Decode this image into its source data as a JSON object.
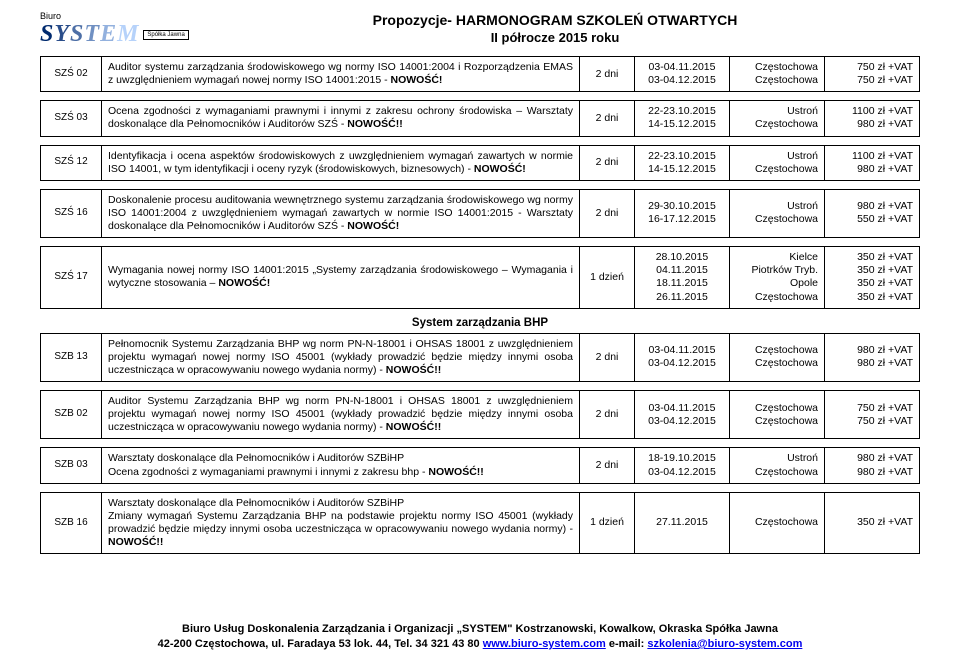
{
  "header": {
    "logo_biuro": "Biuro",
    "logo_spolka": "Spółka Jawna",
    "title_main": "Propozycje- HARMONOGRAM SZKOLEŃ OTWARTYCH",
    "title_sub": "II półrocze 2015 roku"
  },
  "rows1": [
    {
      "code": "SZŚ 02",
      "desc": "Auditor systemu zarządzania środowiskowego wg normy ISO 14001:2004 i Rozporządzenia EMAS z uwzględnieniem wymagań nowej normy ISO 14001:2015 - <b>NOWOŚĆ!</b>",
      "dur": "2 dni",
      "dates": "03-04.11.2015<br>03-04.12.2015",
      "loc": "Częstochowa<br>Częstochowa",
      "price": "750 zł +VAT<br>750 zł +VAT"
    }
  ],
  "rows2": [
    {
      "code": "SZŚ 03",
      "desc": "Ocena zgodności z wymaganiami prawnymi i innymi z zakresu ochrony środowiska – Warsztaty doskonalące dla Pełnomocników i Auditorów SZŚ - <b>NOWOŚĆ!!</b>",
      "dur": "2 dni",
      "dates": "22-23.10.2015<br>14-15.12.2015",
      "loc": "Ustroń<br>Częstochowa",
      "price": "1100 zł +VAT<br>980 zł +VAT"
    }
  ],
  "rows3": [
    {
      "code": "SZŚ 12",
      "desc": "Identyfikacja i ocena aspektów środowiskowych z uwzględnieniem wymagań zawartych w normie ISO 14001, w tym identyfikacji i oceny ryzyk (środowiskowych, biznesowych) - <b>NOWOŚĆ!</b>",
      "dur": "2 dni",
      "dates": "22-23.10.2015<br>14-15.12.2015",
      "loc": "Ustroń<br>Częstochowa",
      "price": "1100 zł +VAT<br>980 zł +VAT"
    }
  ],
  "rows4": [
    {
      "code": "SZŚ 16",
      "desc": "Doskonalenie procesu auditowania wewnętrznego systemu zarządzania środowiskowego wg normy ISO 14001:2004 z uwzględnieniem wymagań zawartych w normie ISO 14001:2015 - Warsztaty doskonalące dla Pełnomocników i Auditorów SZŚ - <b>NOWOŚĆ!</b>",
      "dur": "2 dni",
      "dates": "29-30.10.2015<br>16-17.12.2015",
      "loc": "Ustroń<br>Częstochowa",
      "price": "980 zł +VAT<br>550 zł +VAT"
    }
  ],
  "rows5": [
    {
      "code": "SZŚ 17",
      "desc": "Wymagania nowej normy ISO 14001:2015 „Systemy zarządzania środowiskowego – Wymagania i wytyczne stosowania – <b>NOWOŚĆ!</b>",
      "dur": "1 dzień",
      "dates": "28.10.2015<br>04.11.2015<br>18.11.2015<br>26.11.2015",
      "loc": "Kielce<br>Piotrków Tryb.<br>Opole<br>Częstochowa",
      "price": "350 zł +VAT<br>350 zł +VAT<br>350 zł +VAT<br>350 zł +VAT"
    }
  ],
  "section_bhp": "System zarządzania BHP",
  "rows6": [
    {
      "code": "SZB 13",
      "desc": "Pełnomocnik Systemu Zarządzania BHP wg norm PN-N-18001 i OHSAS 18001 z uwzględnieniem projektu wymagań nowej normy ISO 45001 (wykłady prowadzić będzie między innymi osoba uczestnicząca w opracowywaniu nowego wydania normy) - <b>NOWOŚĆ!!</b>",
      "dur": "2 dni",
      "dates": "03-04.11.2015<br>03-04.12.2015",
      "loc": "Częstochowa<br>Częstochowa",
      "price": "980 zł +VAT<br>980 zł +VAT"
    }
  ],
  "rows7": [
    {
      "code": "SZB 02",
      "desc": "Auditor Systemu Zarządzania BHP wg norm PN-N-18001 i OHSAS 18001 z uwzględnieniem projektu wymagań nowej normy ISO 45001 (wykłady prowadzić będzie między innymi osoba uczestnicząca w opracowywaniu nowego wydania normy) - <b>NOWOŚĆ!!</b>",
      "dur": "2 dni",
      "dates": "03-04.11.2015<br>03-04.12.2015",
      "loc": "Częstochowa<br>Częstochowa",
      "price": "750 zł +VAT<br>750 zł +VAT"
    }
  ],
  "rows8": [
    {
      "code": "SZB 03",
      "desc": "Warsztaty doskonalące dla Pełnomocników i Auditorów SZBiHP<br>Ocena zgodności z wymaganiami prawnymi i innymi z zakresu bhp - <b>NOWOŚĆ!!</b>",
      "dur": "2 dni",
      "dates": "18-19.10.2015<br>03-04.12.2015",
      "loc": "Ustroń<br>Częstochowa",
      "price": "980 zł +VAT<br>980 zł +VAT"
    }
  ],
  "rows9": [
    {
      "code": "SZB 16",
      "desc": "Warsztaty doskonalące dla Pełnomocników i Auditorów SZBiHP<br>Zmiany wymagań Systemu Zarządzania BHP na podstawie projektu normy ISO 45001 (wykłady prowadzić będzie między innymi osoba uczestnicząca w opracowywaniu nowego wydania normy) - <b>NOWOŚĆ!!</b>",
      "dur": "1 dzień",
      "dates": "27.11.2015",
      "loc": "Częstochowa",
      "price": "350 zł +VAT"
    }
  ],
  "footer": {
    "line1": "Biuro Usług Doskonalenia Zarządzania i Organizacji „SYSTEM\" Kostrzanowski, Kowalkow, Okraska Spółka Jawna",
    "line2_a": "42-200 Częstochowa, ul. Faradaya 53 lok. 44, Tel. 34 321 43 80 ",
    "line2_link1": "www.biuro-system.com",
    "line2_b": " e-mail: ",
    "line2_link2": "szkolenia@biuro-system.com"
  }
}
